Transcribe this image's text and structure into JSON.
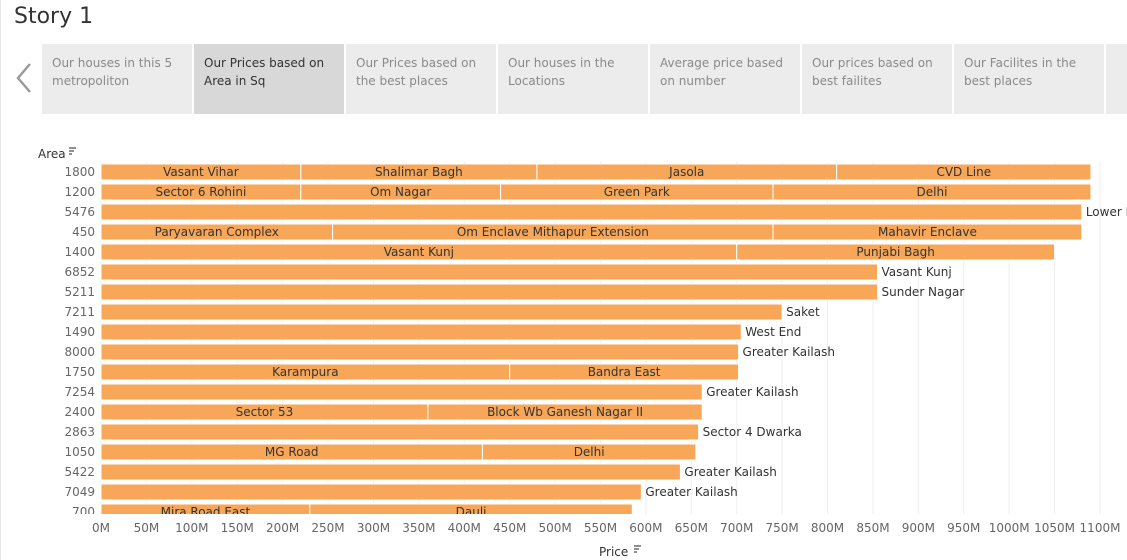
{
  "story": {
    "title": "Story 1"
  },
  "tabs": [
    {
      "label": "Our houses in this 5 metropoliton",
      "active": false
    },
    {
      "label": "Our Prices based on Area in Sq",
      "active": true
    },
    {
      "label": "Our Prices based on the best places",
      "active": false
    },
    {
      "label": "Our houses in the Locations",
      "active": false
    },
    {
      "label": "Average price based on number",
      "active": false
    },
    {
      "label": "Our prices based on best failites",
      "active": false
    },
    {
      "label": "Our Facilites in the best places",
      "active": false
    },
    {
      "label": "",
      "active": false
    }
  ],
  "colors": {
    "bar": "#f7a757",
    "grid": "#eeeeee"
  },
  "chart_data": {
    "type": "bar",
    "orientation": "horizontal",
    "stacked": true,
    "ylabel": "Area",
    "xlabel": "Price",
    "xlim": [
      0,
      1100
    ],
    "xticks": [
      "0M",
      "50M",
      "100M",
      "150M",
      "200M",
      "250M",
      "300M",
      "350M",
      "400M",
      "450M",
      "500M",
      "550M",
      "600M",
      "650M",
      "700M",
      "750M",
      "800M",
      "850M",
      "900M",
      "950M",
      "1000M",
      "1050M",
      "1100M"
    ],
    "grid": true,
    "rows": [
      {
        "category": "1800",
        "segments": [
          {
            "label": "Vasant Vihar",
            "value": 220
          },
          {
            "label": "Shalimar Bagh",
            "value": 260
          },
          {
            "label": "Jasola",
            "value": 330
          },
          {
            "label": "CVD Line",
            "value": 280
          }
        ]
      },
      {
        "category": "1200",
        "segments": [
          {
            "label": "Sector 6 Rohini",
            "value": 220
          },
          {
            "label": "Om Nagar",
            "value": 220
          },
          {
            "label": "Green Park",
            "value": 300
          },
          {
            "label": "Delhi",
            "value": 350
          }
        ]
      },
      {
        "category": "5476",
        "segments": [
          {
            "label": "Lower Parel",
            "value": 1080
          }
        ]
      },
      {
        "category": "450",
        "segments": [
          {
            "label": "Paryavaran Complex",
            "value": 255
          },
          {
            "label": "Om Enclave Mithapur Extension",
            "value": 485
          },
          {
            "label": "Mahavir Enclave",
            "value": 340
          }
        ]
      },
      {
        "category": "1400",
        "segments": [
          {
            "label": "Vasant Kunj",
            "value": 700
          },
          {
            "label": "Punjabi Bagh",
            "value": 350
          }
        ]
      },
      {
        "category": "6852",
        "segments": [
          {
            "label": "Vasant Kunj",
            "value": 855
          }
        ]
      },
      {
        "category": "5211",
        "segments": [
          {
            "label": "Sunder Nagar",
            "value": 855
          }
        ]
      },
      {
        "category": "7211",
        "segments": [
          {
            "label": "Saket",
            "value": 750
          }
        ]
      },
      {
        "category": "1490",
        "segments": [
          {
            "label": "West End",
            "value": 705
          }
        ]
      },
      {
        "category": "8000",
        "segments": [
          {
            "label": "Greater Kailash",
            "value": 702
          }
        ]
      },
      {
        "category": "1750",
        "segments": [
          {
            "label": "Karampura",
            "value": 450
          },
          {
            "label": "Bandra East",
            "value": 252
          }
        ]
      },
      {
        "category": "7254",
        "segments": [
          {
            "label": "Greater Kailash",
            "value": 662
          }
        ]
      },
      {
        "category": "2400",
        "segments": [
          {
            "label": "Sector 53",
            "value": 360
          },
          {
            "label": "Block Wb Ganesh Nagar II",
            "value": 302
          }
        ]
      },
      {
        "category": "2863",
        "segments": [
          {
            "label": "Sector 4 Dwarka",
            "value": 658
          }
        ]
      },
      {
        "category": "1050",
        "segments": [
          {
            "label": "MG Road",
            "value": 420
          },
          {
            "label": "Delhi",
            "value": 235
          }
        ]
      },
      {
        "category": "5422",
        "segments": [
          {
            "label": "Greater Kailash",
            "value": 638
          }
        ]
      },
      {
        "category": "7049",
        "segments": [
          {
            "label": "Greater Kailash",
            "value": 595
          }
        ]
      },
      {
        "category": "700",
        "segments": [
          {
            "label": "Mira Road East",
            "value": 230
          },
          {
            "label": "Dauli",
            "value": 355
          }
        ]
      }
    ]
  }
}
